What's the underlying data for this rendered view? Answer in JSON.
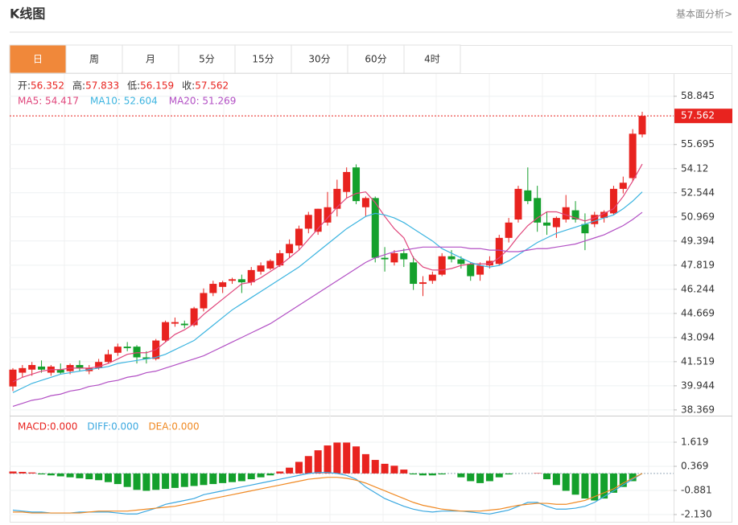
{
  "header": {
    "title": "K线图",
    "link": "基本面分析>"
  },
  "tabs": [
    "日",
    "周",
    "月",
    "5分",
    "15分",
    "30分",
    "60分",
    "4时"
  ],
  "ohlc_legend": [
    {
      "label": "开:",
      "value": "56.352"
    },
    {
      "label": "高:",
      "value": "57.833"
    },
    {
      "label": "低:",
      "value": "56.159"
    },
    {
      "label": "收:",
      "value": "57.562"
    }
  ],
  "ma_legend": [
    "MA5: 54.417",
    "MA10: 52.604",
    "MA20: 51.269"
  ],
  "macd_legend": [
    "MACD:0.000",
    "DIFF:0.000",
    "DEA:0.000"
  ],
  "chart_data": [
    {
      "type": "candlestick",
      "open": [
        39.9,
        40.8,
        41.0,
        41.2,
        40.8,
        41.0,
        40.9,
        41.3,
        40.9,
        41.1,
        41.5,
        42.1,
        42.5,
        42.5,
        41.8,
        41.7,
        42.9,
        44.0,
        44.0,
        43.9,
        45.0,
        46.0,
        46.4,
        46.8,
        46.9,
        46.7,
        47.4,
        47.6,
        47.8,
        48.6,
        49.1,
        50.2,
        50.0,
        50.6,
        51.5,
        52.6,
        54.2,
        51.6,
        52.2,
        48.3,
        48.0,
        48.6,
        48.0,
        46.6,
        46.8,
        47.2,
        48.4,
        48.2,
        47.9,
        47.2,
        47.8,
        47.9,
        49.6,
        50.8,
        52.7,
        52.2,
        50.6,
        50.3,
        50.8,
        51.4,
        50.5,
        50.5,
        50.9,
        51.2,
        52.8,
        53.5,
        56.352
      ],
      "high": [
        41.1,
        41.3,
        41.5,
        41.6,
        41.3,
        41.4,
        41.4,
        41.6,
        41.3,
        41.7,
        42.3,
        42.7,
        42.8,
        42.6,
        42.2,
        43.0,
        44.2,
        44.4,
        44.2,
        45.1,
        46.3,
        46.8,
        46.8,
        47.0,
        47.2,
        47.7,
        48.0,
        48.2,
        48.8,
        49.5,
        50.4,
        51.3,
        51.5,
        52.6,
        53.4,
        54.2,
        54.4,
        52.3,
        52.3,
        49.0,
        48.8,
        48.9,
        48.4,
        47.1,
        47.4,
        48.6,
        48.8,
        48.4,
        48.0,
        48.0,
        48.4,
        49.8,
        50.9,
        53.0,
        54.2,
        53.0,
        51.3,
        51.0,
        52.4,
        52.0,
        51.2,
        51.3,
        51.4,
        53.0,
        53.6,
        56.7,
        57.833
      ],
      "low": [
        39.6,
        40.5,
        40.6,
        40.8,
        40.6,
        40.7,
        40.7,
        40.9,
        40.7,
        41.0,
        41.4,
        41.9,
        42.2,
        41.4,
        41.4,
        41.6,
        42.8,
        43.8,
        43.7,
        43.8,
        44.8,
        45.8,
        46.0,
        46.6,
        46.0,
        46.5,
        47.2,
        47.5,
        47.7,
        48.3,
        48.8,
        49.9,
        49.8,
        50.4,
        51.0,
        52.2,
        51.8,
        51.0,
        48.0,
        47.4,
        47.8,
        47.7,
        46.2,
        45.8,
        46.6,
        47.1,
        48.0,
        47.6,
        46.8,
        46.8,
        47.6,
        47.8,
        49.3,
        50.6,
        51.8,
        50.0,
        49.8,
        49.6,
        50.6,
        50.6,
        48.8,
        50.3,
        50.6,
        51.1,
        52.5,
        53.3,
        56.159
      ],
      "close": [
        41.0,
        41.1,
        41.3,
        41.0,
        41.2,
        40.8,
        41.3,
        41.1,
        41.1,
        41.5,
        42.0,
        42.5,
        42.4,
        41.8,
        41.7,
        42.9,
        44.1,
        44.1,
        43.9,
        45.0,
        46.0,
        46.6,
        46.7,
        46.9,
        46.7,
        47.5,
        47.8,
        48.1,
        48.6,
        49.2,
        50.2,
        51.1,
        51.5,
        51.6,
        52.8,
        53.9,
        52.0,
        52.2,
        48.3,
        48.2,
        48.6,
        48.2,
        46.6,
        46.7,
        47.2,
        48.4,
        48.2,
        47.9,
        47.1,
        47.8,
        48.1,
        49.6,
        50.6,
        52.8,
        52.0,
        50.6,
        50.4,
        50.9,
        51.6,
        50.8,
        49.9,
        51.1,
        51.3,
        52.8,
        53.2,
        56.4,
        57.562
      ],
      "series": [
        {
          "name": "MA5",
          "color": "#e0457b",
          "values": [
            40.2,
            40.5,
            40.7,
            40.9,
            41.0,
            41.0,
            41.1,
            41.1,
            41.1,
            41.2,
            41.4,
            41.7,
            42.0,
            42.1,
            42.1,
            42.3,
            42.8,
            43.3,
            43.6,
            44.0,
            44.6,
            45.1,
            45.6,
            46.1,
            46.6,
            46.7,
            47.0,
            47.4,
            47.8,
            48.3,
            48.8,
            49.5,
            50.2,
            50.9,
            51.6,
            52.2,
            52.5,
            52.6,
            51.9,
            51.0,
            50.2,
            49.6,
            48.3,
            47.7,
            47.5,
            47.5,
            47.6,
            47.8,
            47.9,
            47.9,
            47.9,
            48.3,
            48.9,
            49.7,
            50.4,
            50.9,
            51.3,
            51.3,
            51.1,
            50.9,
            50.7,
            50.9,
            51.2,
            51.5,
            52.3,
            53.3,
            54.417
          ]
        },
        {
          "name": "MA10",
          "color": "#3bb4e0",
          "values": [
            39.5,
            39.8,
            40.1,
            40.3,
            40.5,
            40.7,
            40.8,
            40.9,
            41.0,
            41.1,
            41.2,
            41.4,
            41.5,
            41.6,
            41.7,
            41.8,
            42.0,
            42.3,
            42.6,
            42.9,
            43.4,
            43.9,
            44.4,
            44.9,
            45.3,
            45.7,
            46.1,
            46.5,
            46.9,
            47.3,
            47.7,
            48.2,
            48.7,
            49.2,
            49.7,
            50.2,
            50.6,
            51.0,
            51.2,
            51.1,
            50.9,
            50.6,
            50.2,
            49.8,
            49.4,
            48.9,
            48.6,
            48.3,
            48.0,
            47.8,
            47.7,
            47.8,
            48.1,
            48.5,
            48.9,
            49.3,
            49.6,
            49.9,
            50.1,
            50.3,
            50.5,
            50.7,
            50.9,
            51.1,
            51.5,
            52.0,
            52.604
          ]
        },
        {
          "name": "MA20",
          "color": "#b24fc4",
          "values": [
            38.6,
            38.8,
            39.0,
            39.1,
            39.3,
            39.4,
            39.6,
            39.7,
            39.9,
            40.0,
            40.2,
            40.3,
            40.5,
            40.6,
            40.8,
            40.9,
            41.1,
            41.3,
            41.5,
            41.7,
            41.9,
            42.2,
            42.5,
            42.8,
            43.1,
            43.4,
            43.7,
            44.0,
            44.4,
            44.8,
            45.2,
            45.6,
            46.0,
            46.4,
            46.8,
            47.2,
            47.6,
            48.0,
            48.3,
            48.5,
            48.7,
            48.8,
            48.9,
            49.0,
            49.0,
            49.0,
            49.0,
            49.0,
            48.9,
            48.9,
            48.8,
            48.8,
            48.7,
            48.7,
            48.8,
            48.9,
            48.9,
            49.0,
            49.1,
            49.2,
            49.4,
            49.6,
            49.8,
            50.1,
            50.4,
            50.8,
            51.269
          ]
        }
      ],
      "up_color": "#e8231f",
      "down_color": "#14a02c",
      "ylim": [
        38.1,
        60.3
      ],
      "yticks": [
        58.845,
        55.695,
        54.12,
        52.544,
        50.969,
        49.394,
        47.819,
        46.244,
        44.669,
        43.094,
        41.519,
        39.944,
        38.369
      ],
      "last_price": "57.562",
      "grid": true
    },
    {
      "type": "macd",
      "values": [
        0.1,
        0.08,
        0.05,
        -0.05,
        -0.1,
        -0.15,
        -0.2,
        -0.25,
        -0.3,
        -0.35,
        -0.45,
        -0.55,
        -0.7,
        -0.85,
        -0.9,
        -0.85,
        -0.8,
        -0.75,
        -0.7,
        -0.65,
        -0.6,
        -0.55,
        -0.5,
        -0.45,
        -0.4,
        -0.3,
        -0.2,
        -0.1,
        0.1,
        0.3,
        0.6,
        0.9,
        1.2,
        1.45,
        1.6,
        1.6,
        1.4,
        1.0,
        0.7,
        0.5,
        0.4,
        0.2,
        -0.05,
        -0.1,
        -0.1,
        -0.05,
        0,
        -0.2,
        -0.4,
        -0.5,
        -0.4,
        -0.2,
        -0.05,
        0,
        0,
        0.02,
        -0.3,
        -0.6,
        -0.9,
        -1.1,
        -1.3,
        -1.4,
        -1.3,
        -1.0,
        -0.7,
        -0.4,
        0
      ],
      "series": [
        {
          "name": "DIFF",
          "color": "#3ba8e0",
          "values": [
            -1.9,
            -1.95,
            -2.0,
            -2.0,
            -2.05,
            -2.05,
            -2.05,
            -2.0,
            -2.0,
            -2.0,
            -2.0,
            -2.05,
            -2.1,
            -2.1,
            -1.95,
            -1.8,
            -1.6,
            -1.5,
            -1.4,
            -1.3,
            -1.1,
            -1.0,
            -0.9,
            -0.8,
            -0.7,
            -0.6,
            -0.5,
            -0.4,
            -0.3,
            -0.2,
            -0.1,
            0.0,
            0.05,
            0.05,
            0.0,
            -0.1,
            -0.3,
            -0.7,
            -1.0,
            -1.3,
            -1.5,
            -1.7,
            -1.85,
            -1.95,
            -2.0,
            -1.95,
            -1.95,
            -1.95,
            -2.0,
            -2.05,
            -2.1,
            -2.0,
            -1.9,
            -1.7,
            -1.5,
            -1.5,
            -1.7,
            -1.85,
            -1.85,
            -1.8,
            -1.7,
            -1.5,
            -1.2,
            -0.9,
            -0.6,
            -0.3,
            0.0
          ]
        },
        {
          "name": "DEA",
          "color": "#f08a24",
          "values": [
            -2.0,
            -2.0,
            -2.05,
            -2.05,
            -2.05,
            -2.05,
            -2.05,
            -2.05,
            -2.0,
            -1.95,
            -1.95,
            -1.95,
            -1.95,
            -1.9,
            -1.85,
            -1.8,
            -1.75,
            -1.7,
            -1.6,
            -1.5,
            -1.4,
            -1.3,
            -1.2,
            -1.1,
            -1.0,
            -0.9,
            -0.8,
            -0.7,
            -0.6,
            -0.5,
            -0.4,
            -0.3,
            -0.25,
            -0.2,
            -0.2,
            -0.25,
            -0.35,
            -0.5,
            -0.7,
            -0.9,
            -1.1,
            -1.3,
            -1.5,
            -1.65,
            -1.75,
            -1.85,
            -1.9,
            -1.95,
            -1.95,
            -1.95,
            -1.9,
            -1.85,
            -1.75,
            -1.65,
            -1.6,
            -1.55,
            -1.55,
            -1.6,
            -1.6,
            -1.5,
            -1.4,
            -1.2,
            -1.0,
            -0.8,
            -0.5,
            -0.25,
            0.0
          ]
        }
      ],
      "up_color": "#e8231f",
      "down_color": "#14a02c",
      "ylim": [
        -2.463,
        2.869
      ],
      "yticks": [
        1.619,
        0.369,
        -0.881,
        {
          "value": -2.13,
          "label": "-2.130"
        }
      ]
    }
  ]
}
